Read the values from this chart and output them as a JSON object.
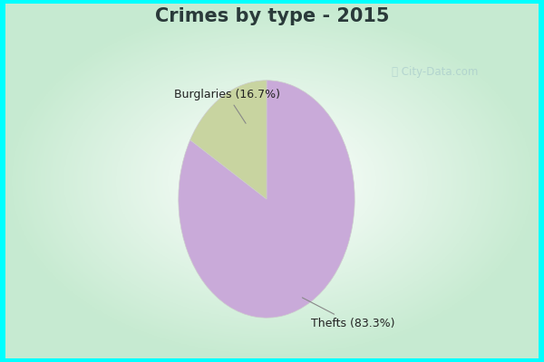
{
  "title": "Crimes by type - 2015",
  "slices": [
    {
      "label": "Thefts (83.3%)",
      "value": 83.3,
      "color": "#C9AAD9"
    },
    {
      "label": "Burglaries (16.7%)",
      "value": 16.7,
      "color": "#C8D4A0"
    }
  ],
  "title_color": "#2a3a3a",
  "title_fontsize": 15,
  "title_fontweight": "bold",
  "cyan_border": "#00FFFF",
  "inner_bg_center": "#ffffff",
  "inner_bg_edge": "#b8e8c8",
  "startangle": 90,
  "label_color": "#222222",
  "label_fontsize": 9,
  "watermark_color": "#aacccc",
  "watermark_alpha": 0.75
}
